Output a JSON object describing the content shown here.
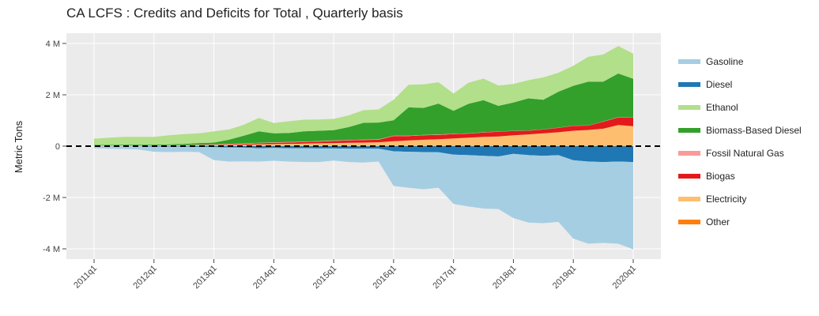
{
  "chart_data": {
    "type": "area",
    "title": "CA LCFS :  Credits and Deficits for  Total ,  Quarterly  basis",
    "xlabel": "",
    "ylabel": "Metric Tons",
    "ylim": [
      -4.4,
      4.4
    ],
    "yticks": [
      4,
      2,
      0,
      -2,
      -4
    ],
    "ytick_labels": [
      "4 M",
      "2 M",
      "0",
      "-2 M",
      "-4 M"
    ],
    "xtick_labels": [
      "2011q1",
      "2012q1",
      "2013q1",
      "2014q1",
      "2015q1",
      "2016q1",
      "2017q1",
      "2018q1",
      "2019q1",
      "2020q1"
    ],
    "xtick_index": [
      0,
      4,
      8,
      12,
      16,
      20,
      24,
      28,
      32,
      36
    ],
    "unit": "million metric tons",
    "zero_line": "dashed",
    "legend_position": "right",
    "periods": [
      "2011q1",
      "2011q2",
      "2011q3",
      "2011q4",
      "2012q1",
      "2012q2",
      "2012q3",
      "2012q4",
      "2013q1",
      "2013q2",
      "2013q3",
      "2013q4",
      "2014q1",
      "2014q2",
      "2014q3",
      "2014q4",
      "2015q1",
      "2015q2",
      "2015q3",
      "2015q4",
      "2016q1",
      "2016q2",
      "2016q3",
      "2016q4",
      "2017q1",
      "2017q2",
      "2017q3",
      "2017q4",
      "2018q1",
      "2018q2",
      "2018q3",
      "2018q4",
      "2019q1",
      "2019q2",
      "2019q3",
      "2019q4",
      "2020q1"
    ],
    "credit_series": [
      {
        "name": "Other",
        "color": "#ff7f0e",
        "values": [
          0,
          0,
          0,
          0,
          0,
          0,
          0,
          0,
          0,
          0,
          0,
          0,
          0,
          0,
          0,
          0,
          0,
          0,
          0,
          0,
          0,
          0,
          0,
          0,
          0,
          0,
          0,
          0,
          0,
          0,
          0,
          0,
          0,
          0,
          0,
          0,
          0
        ]
      },
      {
        "name": "Electricity",
        "color": "#fdbf6f",
        "values": [
          0.01,
          0.01,
          0.01,
          0.01,
          0.01,
          0.02,
          0.02,
          0.03,
          0.04,
          0.05,
          0.06,
          0.07,
          0.08,
          0.09,
          0.1,
          0.11,
          0.12,
          0.13,
          0.14,
          0.15,
          0.19,
          0.22,
          0.25,
          0.27,
          0.3,
          0.33,
          0.36,
          0.38,
          0.42,
          0.46,
          0.5,
          0.54,
          0.6,
          0.63,
          0.68,
          0.82,
          0.78
        ]
      },
      {
        "name": "Biogas",
        "color": "#e31a1c",
        "values": [
          0,
          0,
          0,
          0,
          0,
          0,
          0,
          0.01,
          0.01,
          0.02,
          0.03,
          0.04,
          0.05,
          0.05,
          0.06,
          0.07,
          0.08,
          0.09,
          0.1,
          0.1,
          0.2,
          0.17,
          0.17,
          0.17,
          0.17,
          0.16,
          0.17,
          0.18,
          0.17,
          0.14,
          0.15,
          0.17,
          0.19,
          0.17,
          0.27,
          0.3,
          0.33
        ]
      },
      {
        "name": "Fossil Natural Gas",
        "color": "#fb9a99",
        "values": [
          0.02,
          0.02,
          0.02,
          0.02,
          0.02,
          0.02,
          0.02,
          0.02,
          0.02,
          0.02,
          0.02,
          0.02,
          0.02,
          0.02,
          0.02,
          0.02,
          0.02,
          0.02,
          0.02,
          0.02,
          0.02,
          0.02,
          0.02,
          0.02,
          0.01,
          0.01,
          0.01,
          0.01,
          0.01,
          0.01,
          0.01,
          0.01,
          0.01,
          0.01,
          0.01,
          0.01,
          0.01
        ]
      },
      {
        "name": "Biomass-Based Diesel",
        "color": "#33a02c",
        "values": [
          0.02,
          0.02,
          0.03,
          0.03,
          0.03,
          0.03,
          0.05,
          0.06,
          0.07,
          0.16,
          0.3,
          0.45,
          0.35,
          0.35,
          0.4,
          0.4,
          0.4,
          0.5,
          0.65,
          0.65,
          0.6,
          1.1,
          1.05,
          1.2,
          0.9,
          1.15,
          1.25,
          1.0,
          1.1,
          1.25,
          1.15,
          1.4,
          1.55,
          1.7,
          1.55,
          1.7,
          1.5
        ]
      },
      {
        "name": "Ethanol",
        "color": "#b2df8a",
        "values": [
          0.24,
          0.28,
          0.3,
          0.3,
          0.3,
          0.35,
          0.38,
          0.38,
          0.44,
          0.4,
          0.42,
          0.52,
          0.4,
          0.46,
          0.45,
          0.44,
          0.44,
          0.46,
          0.49,
          0.51,
          0.8,
          0.88,
          0.92,
          0.83,
          0.67,
          0.82,
          0.84,
          0.79,
          0.72,
          0.71,
          0.87,
          0.74,
          0.78,
          0.97,
          1.06,
          1.07,
          0.98
        ]
      }
    ],
    "deficit_series": [
      {
        "name": "Diesel",
        "color": "#1f78b4",
        "values": [
          -0.01,
          -0.01,
          -0.01,
          -0.01,
          -0.02,
          -0.02,
          -0.02,
          -0.03,
          -0.04,
          -0.05,
          -0.06,
          -0.08,
          -0.07,
          -0.08,
          -0.08,
          -0.09,
          -0.09,
          -0.1,
          -0.1,
          -0.1,
          -0.2,
          -0.22,
          -0.23,
          -0.24,
          -0.33,
          -0.35,
          -0.38,
          -0.4,
          -0.3,
          -0.35,
          -0.38,
          -0.35,
          -0.55,
          -0.6,
          -0.62,
          -0.6,
          -0.62
        ]
      },
      {
        "name": "Gasoline",
        "color": "#a6cee3",
        "values": [
          -0.07,
          -0.09,
          -0.1,
          -0.12,
          -0.2,
          -0.21,
          -0.2,
          -0.2,
          -0.5,
          -0.55,
          -0.53,
          -0.52,
          -0.5,
          -0.52,
          -0.54,
          -0.53,
          -0.47,
          -0.52,
          -0.54,
          -0.5,
          -1.35,
          -1.4,
          -1.45,
          -1.38,
          -1.92,
          -2.0,
          -2.05,
          -2.05,
          -2.5,
          -2.63,
          -2.62,
          -2.6,
          -3.05,
          -3.2,
          -3.15,
          -3.2,
          -3.4
        ]
      }
    ],
    "legend": [
      {
        "name": "Gasoline",
        "color": "#a6cee3"
      },
      {
        "name": "Diesel",
        "color": "#1f78b4"
      },
      {
        "name": "Ethanol",
        "color": "#b2df8a"
      },
      {
        "name": "Biomass-Based Diesel",
        "color": "#33a02c"
      },
      {
        "name": "Fossil Natural Gas",
        "color": "#fb9a99"
      },
      {
        "name": "Biogas",
        "color": "#e31a1c"
      },
      {
        "name": "Electricity",
        "color": "#fdbf6f"
      },
      {
        "name": "Other",
        "color": "#ff7f0e"
      }
    ]
  }
}
